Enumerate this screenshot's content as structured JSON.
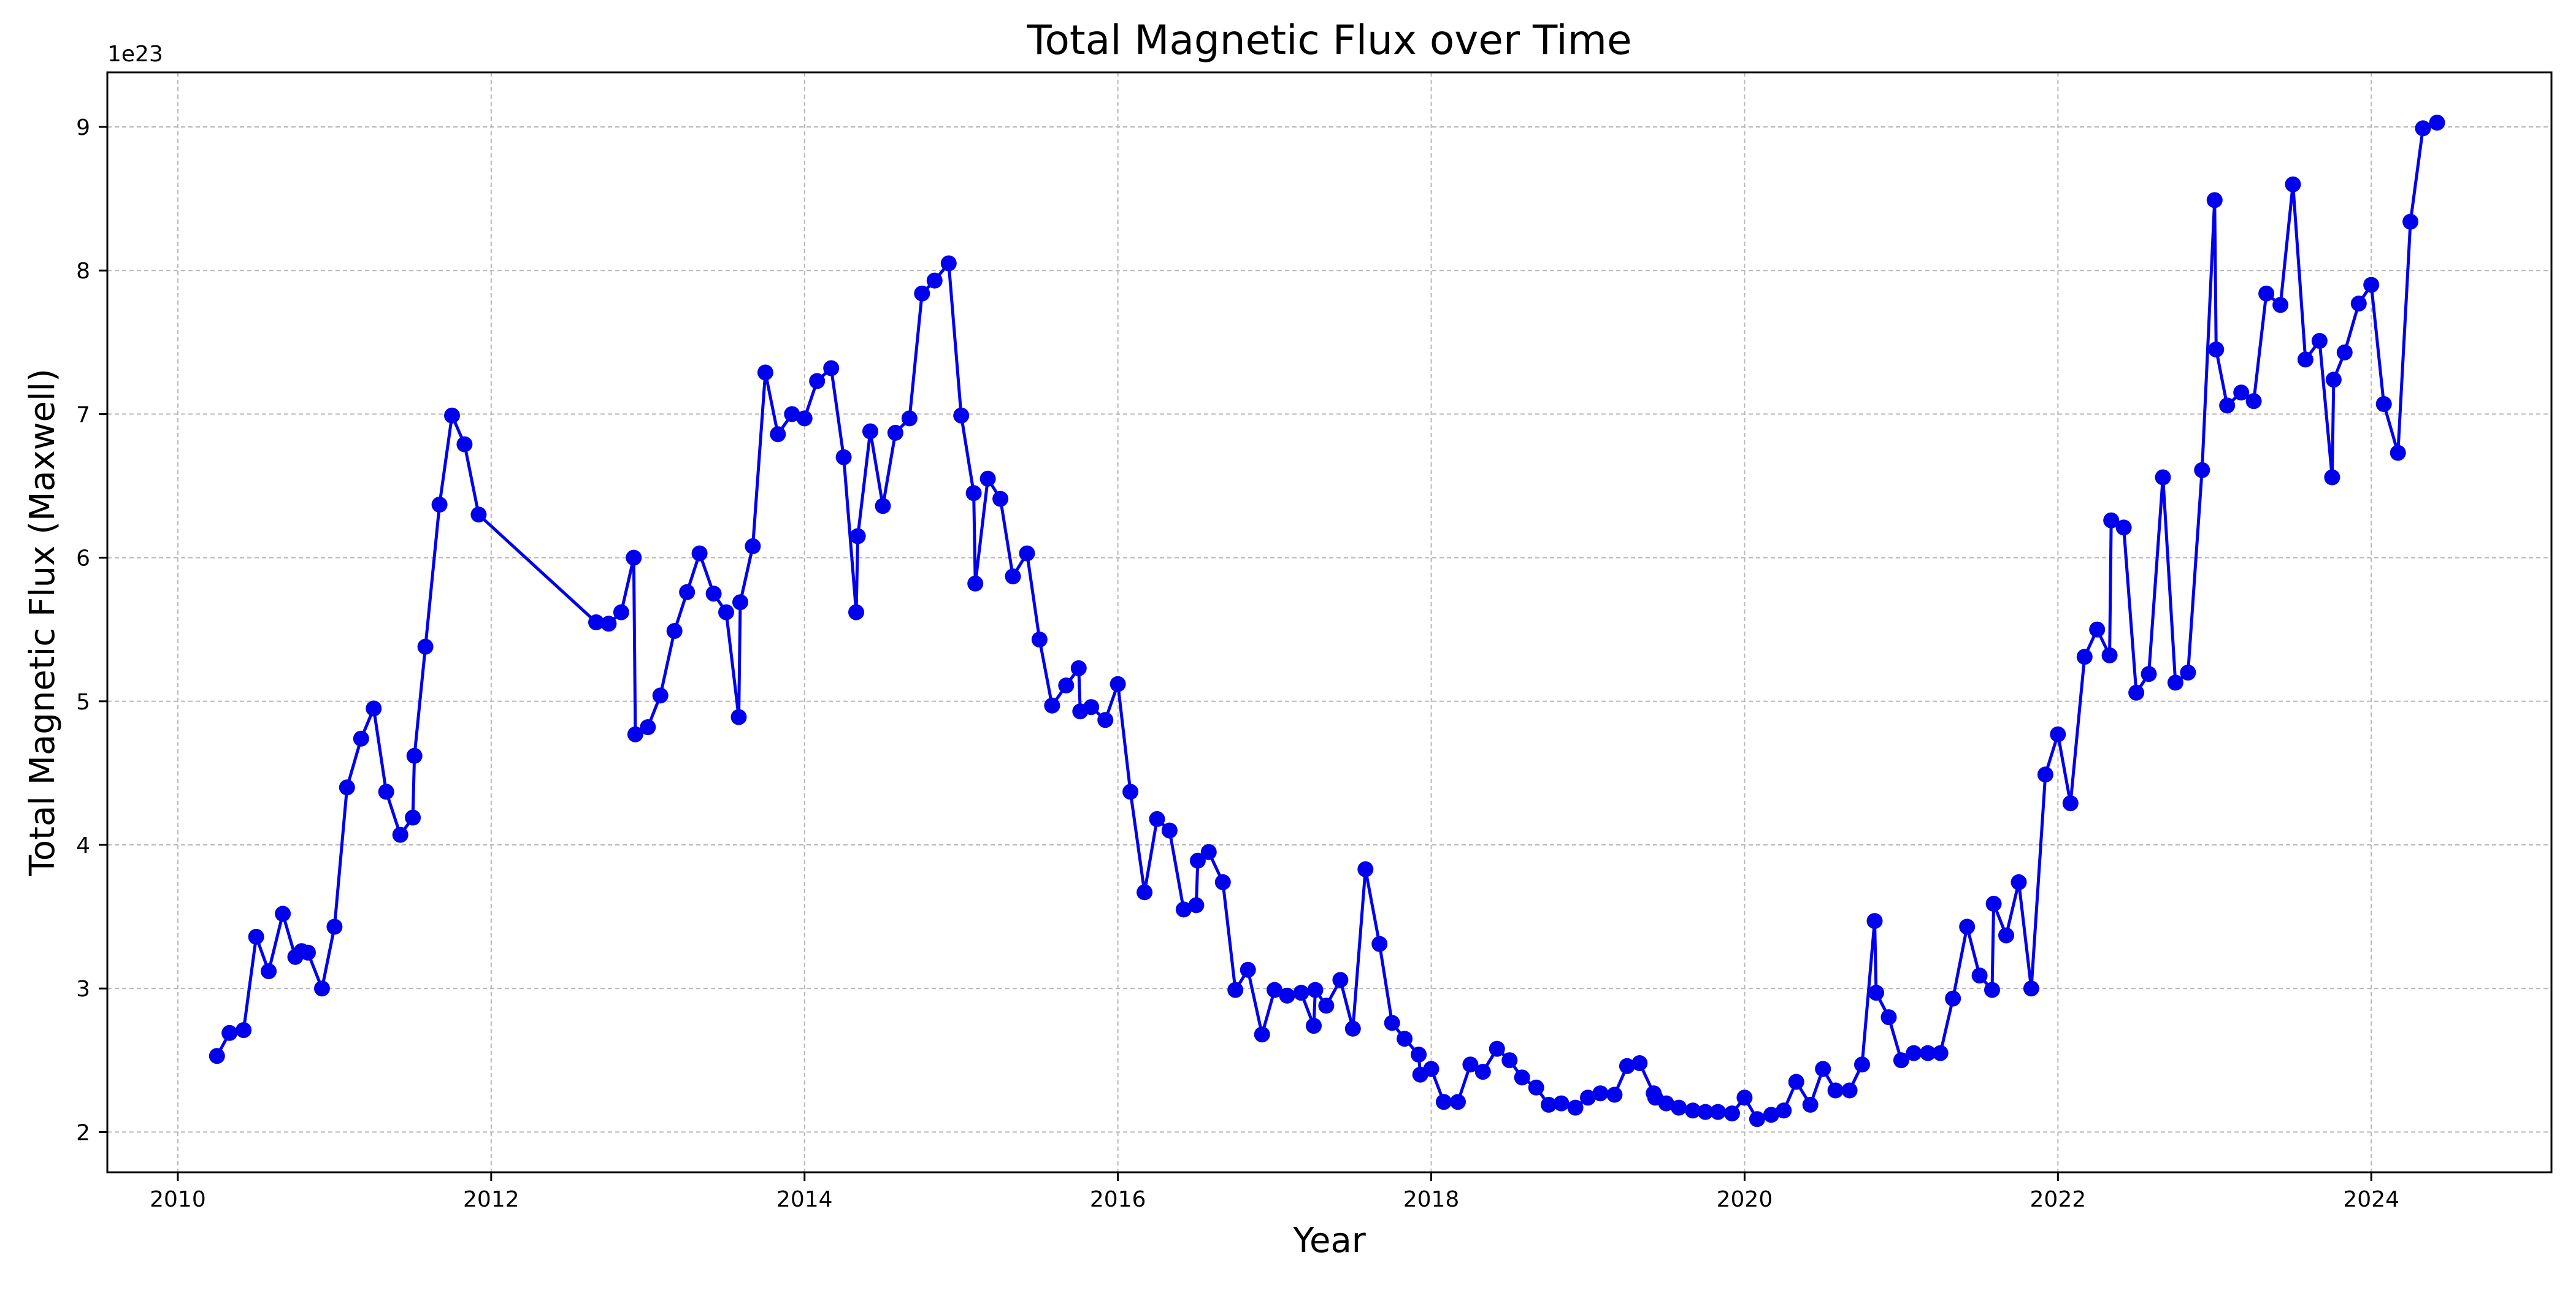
{
  "chart_data": {
    "type": "line",
    "title": "Total Magnetic Flux over Time",
    "xlabel": "Year",
    "ylabel": "Total Magnetic Flux (Maxwell)",
    "y_offset_label": "1e23",
    "x_unit": "decimal year",
    "y_unit": "1e23 Maxwell",
    "xlim": [
      2009.55,
      2025.15
    ],
    "ylim": [
      1.72,
      9.38
    ],
    "x_ticks": [
      "2010",
      "2012",
      "2014",
      "2016",
      "2018",
      "2020",
      "2022",
      "2024"
    ],
    "y_ticks": [
      "2",
      "3",
      "4",
      "5",
      "6",
      "7",
      "8",
      "9"
    ],
    "grid": true,
    "marker": "circle",
    "line_color": "#0000ee",
    "marker_color": "#0000ee",
    "series": [
      {
        "x": [
          2010.25,
          2010.33,
          2010.42,
          2010.5,
          2010.58,
          2010.67,
          2010.75,
          2010.79,
          2010.83,
          2010.92,
          2011.0,
          2011.08,
          2011.17,
          2011.25,
          2011.33,
          2011.42,
          2011.5,
          2011.51,
          2011.58,
          2011.67,
          2011.75,
          2011.83,
          2011.92,
          2012.67,
          2012.75,
          2012.83,
          2012.91,
          2012.92,
          2013.0,
          2013.08,
          2013.17,
          2013.25,
          2013.33,
          2013.42,
          2013.5,
          2013.58,
          2013.59,
          2013.67,
          2013.75,
          2013.83,
          2013.92,
          2014.0,
          2014.08,
          2014.17,
          2014.25,
          2014.33,
          2014.34,
          2014.42,
          2014.5,
          2014.58,
          2014.67,
          2014.75,
          2014.83,
          2014.92,
          2015.0,
          2015.08,
          2015.09,
          2015.17,
          2015.25,
          2015.33,
          2015.42,
          2015.5,
          2015.58,
          2015.67,
          2015.75,
          2015.76,
          2015.83,
          2015.92,
          2016.0,
          2016.08,
          2016.17,
          2016.25,
          2016.33,
          2016.42,
          2016.5,
          2016.51,
          2016.58,
          2016.67,
          2016.75,
          2016.83,
          2016.92,
          2017.0,
          2017.08,
          2017.17,
          2017.25,
          2017.26,
          2017.33,
          2017.42,
          2017.5,
          2017.58,
          2017.67,
          2017.75,
          2017.83,
          2017.92,
          2017.93,
          2018.0,
          2018.08,
          2018.17,
          2018.25,
          2018.33,
          2018.42,
          2018.5,
          2018.58,
          2018.67,
          2018.75,
          2018.83,
          2018.92,
          2019.0,
          2019.08,
          2019.17,
          2019.25,
          2019.33,
          2019.42,
          2019.43,
          2019.5,
          2019.58,
          2019.67,
          2019.75,
          2019.83,
          2019.92,
          2020.0,
          2020.08,
          2020.17,
          2020.25,
          2020.33,
          2020.42,
          2020.5,
          2020.58,
          2020.67,
          2020.75,
          2020.83,
          2020.84,
          2020.92,
          2021.0,
          2021.08,
          2021.17,
          2021.25,
          2021.33,
          2021.42,
          2021.5,
          2021.58,
          2021.59,
          2021.67,
          2021.75,
          2021.83,
          2021.92,
          2022.0,
          2022.08,
          2022.17,
          2022.25,
          2022.33,
          2022.34,
          2022.42,
          2022.5,
          2022.58,
          2022.67,
          2022.75,
          2022.83,
          2022.92,
          2023.0,
          2023.01,
          2023.08,
          2023.17,
          2023.25,
          2023.33,
          2023.42,
          2023.5,
          2023.58,
          2023.67,
          2023.75,
          2023.76,
          2023.83,
          2023.92,
          2024.0,
          2024.08,
          2024.17,
          2024.25,
          2024.33,
          2024.42
        ],
        "y": [
          2.53,
          2.69,
          2.71,
          3.36,
          3.12,
          3.52,
          3.22,
          3.26,
          3.25,
          3.0,
          3.43,
          4.4,
          4.74,
          4.95,
          4.37,
          4.07,
          4.19,
          4.62,
          5.38,
          6.37,
          6.99,
          6.79,
          6.3,
          5.55,
          5.54,
          5.62,
          6.0,
          4.77,
          4.82,
          5.04,
          5.49,
          5.76,
          6.03,
          5.75,
          5.62,
          4.89,
          5.69,
          6.08,
          7.29,
          6.86,
          7.0,
          6.97,
          7.23,
          7.32,
          6.7,
          5.62,
          6.15,
          6.88,
          6.36,
          6.87,
          6.97,
          7.84,
          7.93,
          8.05,
          6.99,
          6.45,
          5.82,
          6.55,
          6.41,
          5.87,
          6.03,
          5.43,
          4.97,
          5.11,
          5.23,
          4.93,
          4.96,
          4.87,
          5.12,
          4.37,
          3.67,
          4.18,
          4.1,
          3.55,
          3.58,
          3.89,
          3.95,
          3.74,
          2.99,
          3.13,
          2.68,
          2.99,
          2.95,
          2.97,
          2.74,
          2.99,
          2.88,
          3.06,
          2.72,
          3.83,
          3.31,
          2.76,
          2.65,
          2.54,
          2.4,
          2.44,
          2.21,
          2.21,
          2.47,
          2.42,
          2.58,
          2.5,
          2.38,
          2.31,
          2.19,
          2.2,
          2.17,
          2.24,
          2.27,
          2.26,
          2.46,
          2.48,
          2.27,
          2.24,
          2.2,
          2.17,
          2.15,
          2.14,
          2.14,
          2.13,
          2.24,
          2.09,
          2.12,
          2.15,
          2.35,
          2.19,
          2.44,
          2.29,
          2.29,
          2.47,
          3.47,
          2.97,
          2.8,
          2.5,
          2.55,
          2.55,
          2.55,
          2.93,
          3.43,
          3.09,
          2.99,
          3.59,
          3.37,
          3.74,
          3.0,
          4.49,
          4.77,
          4.29,
          5.31,
          5.5,
          5.32,
          6.26,
          6.21,
          5.06,
          5.19,
          6.56,
          5.13,
          5.2,
          6.61,
          8.49,
          7.45,
          7.06,
          7.15,
          7.09,
          7.84,
          7.76,
          8.6,
          7.38,
          7.51,
          6.56,
          7.24,
          7.43,
          7.77,
          7.9,
          7.07,
          6.73,
          8.34,
          8.99,
          9.03
        ]
      }
    ]
  }
}
